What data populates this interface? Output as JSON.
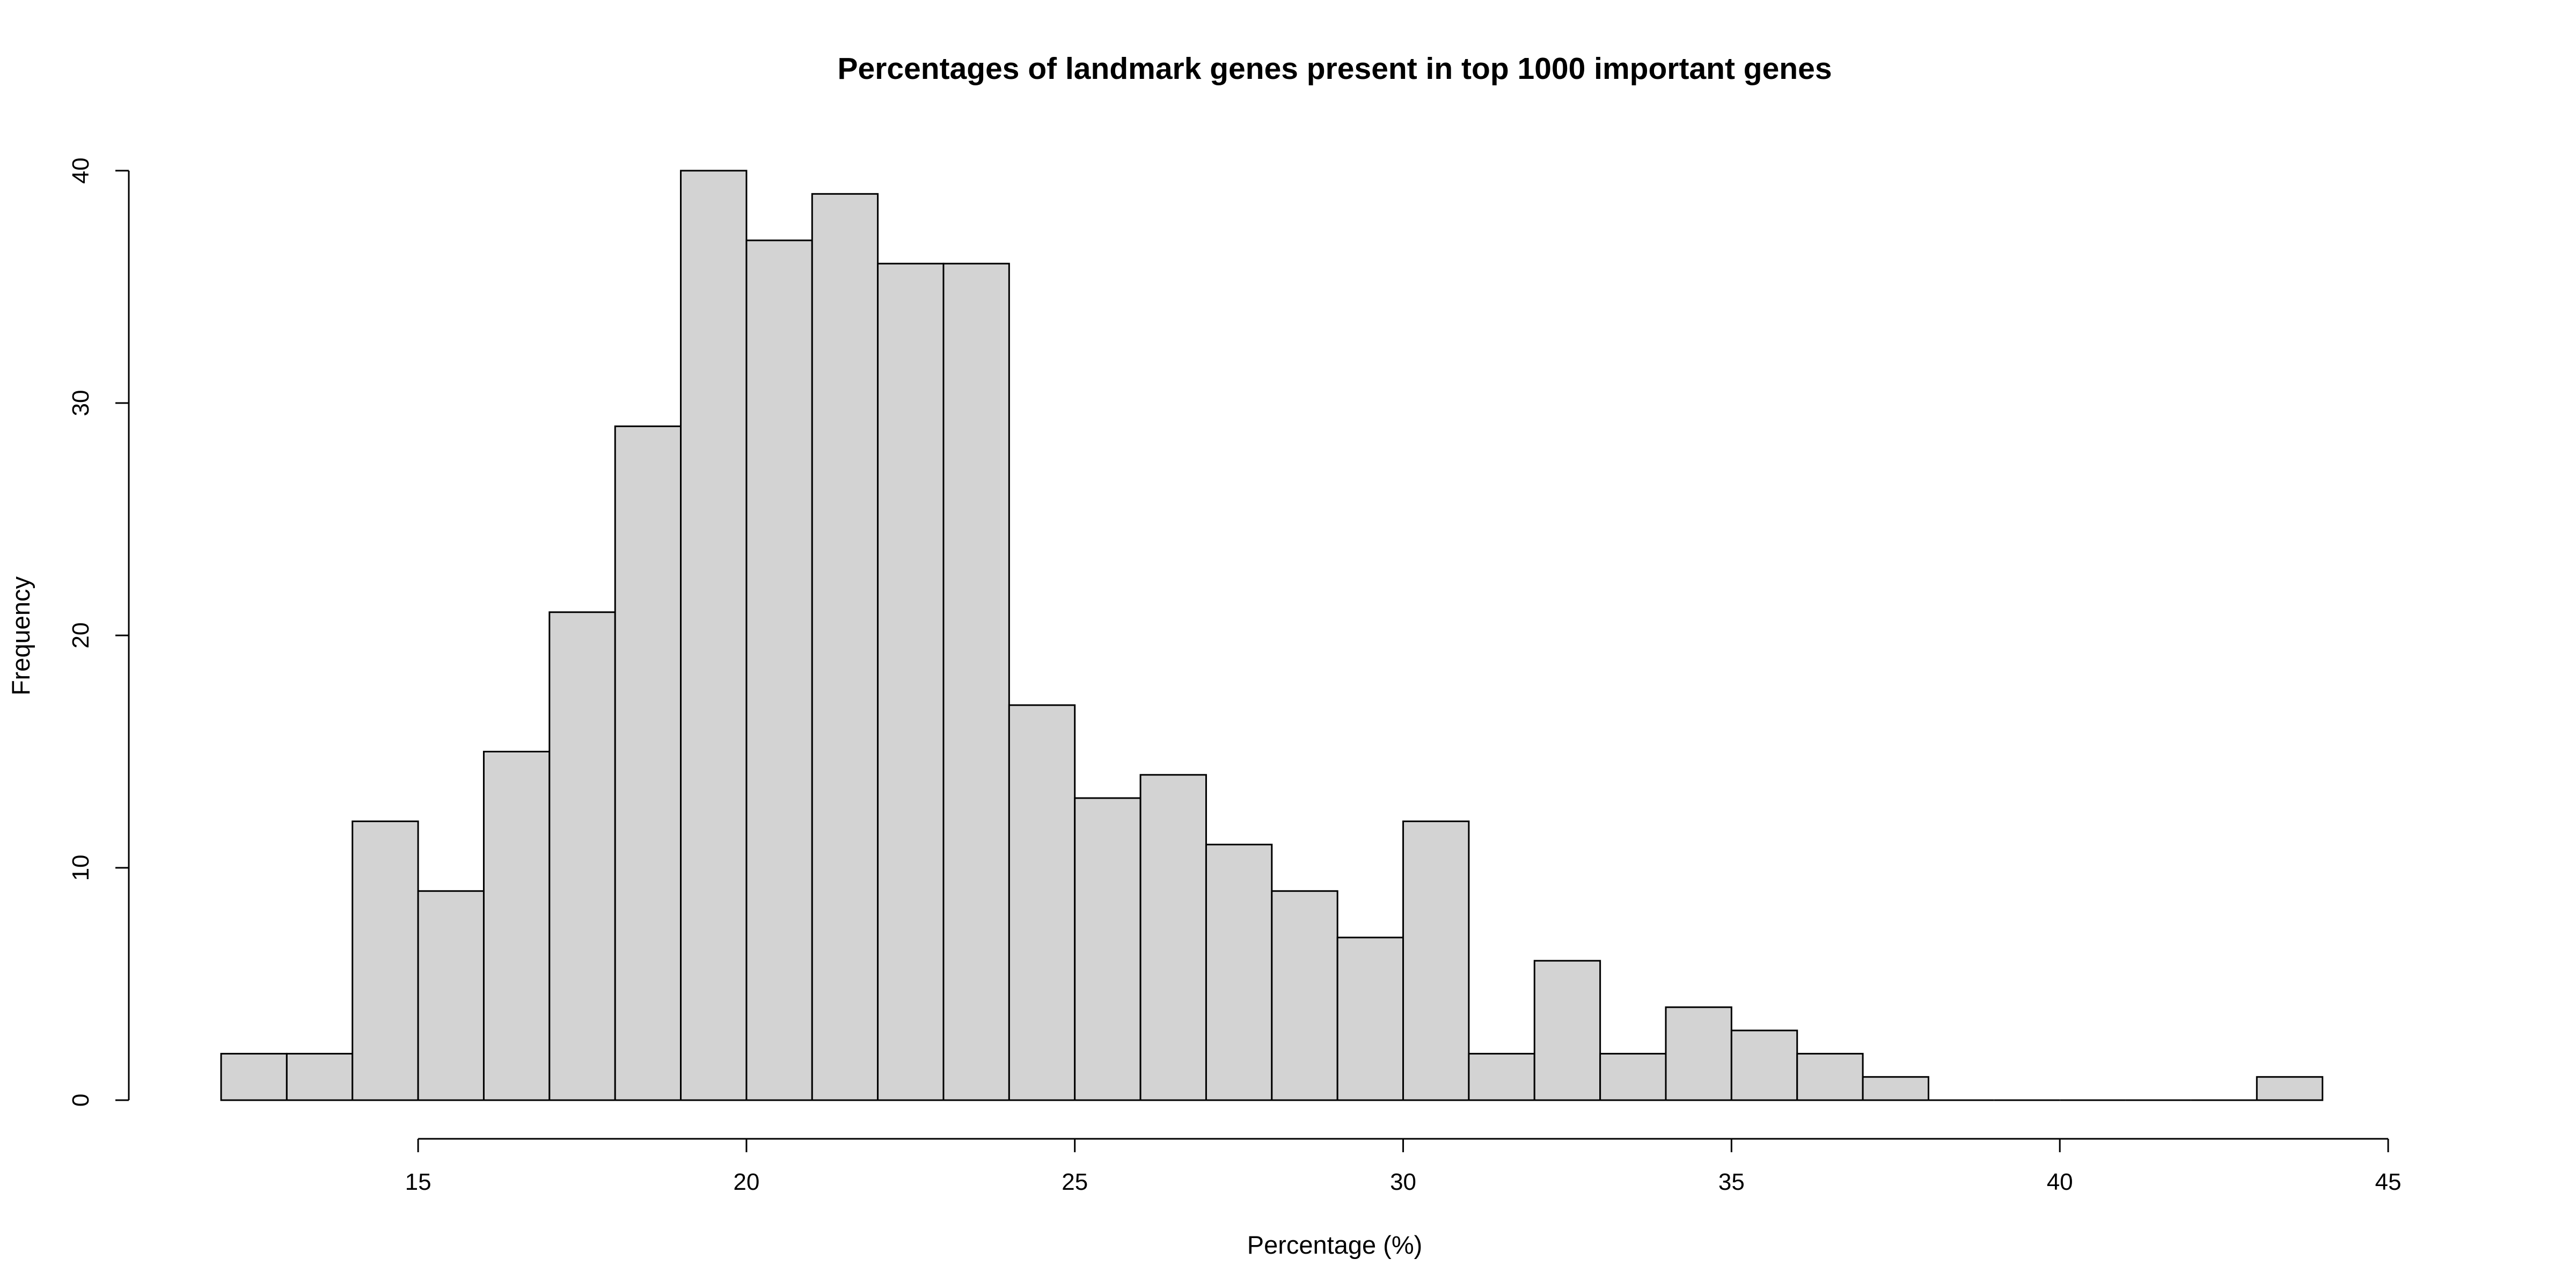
{
  "colors": {
    "bar_fill": "#d3d3d3",
    "bar_stroke": "#000000",
    "background": "#ffffff"
  },
  "chart_data": {
    "type": "bar",
    "title": "Percentages of landmark genes present in top 1000 important genes",
    "xlabel": "Percentage (%)",
    "ylabel": "Frequency",
    "xlim": [
      12,
      45
    ],
    "ylim": [
      0,
      40
    ],
    "xticks": [
      15,
      20,
      25,
      30,
      35,
      40,
      45
    ],
    "yticks": [
      0,
      10,
      20,
      30,
      40
    ],
    "grid": false,
    "bins": [
      {
        "from": 12,
        "to": 13,
        "count": 2
      },
      {
        "from": 13,
        "to": 14,
        "count": 2
      },
      {
        "from": 14,
        "to": 15,
        "count": 12
      },
      {
        "from": 15,
        "to": 16,
        "count": 9
      },
      {
        "from": 16,
        "to": 17,
        "count": 15
      },
      {
        "from": 17,
        "to": 18,
        "count": 21
      },
      {
        "from": 18,
        "to": 19,
        "count": 29
      },
      {
        "from": 19,
        "to": 20,
        "count": 40
      },
      {
        "from": 20,
        "to": 21,
        "count": 37
      },
      {
        "from": 21,
        "to": 22,
        "count": 39
      },
      {
        "from": 22,
        "to": 23,
        "count": 36
      },
      {
        "from": 23,
        "to": 24,
        "count": 36
      },
      {
        "from": 24,
        "to": 25,
        "count": 17
      },
      {
        "from": 25,
        "to": 26,
        "count": 13
      },
      {
        "from": 26,
        "to": 27,
        "count": 14
      },
      {
        "from": 27,
        "to": 28,
        "count": 11
      },
      {
        "from": 28,
        "to": 29,
        "count": 9
      },
      {
        "from": 29,
        "to": 30,
        "count": 7
      },
      {
        "from": 30,
        "to": 31,
        "count": 12
      },
      {
        "from": 31,
        "to": 32,
        "count": 2
      },
      {
        "from": 32,
        "to": 33,
        "count": 6
      },
      {
        "from": 33,
        "to": 34,
        "count": 2
      },
      {
        "from": 34,
        "to": 35,
        "count": 4
      },
      {
        "from": 35,
        "to": 36,
        "count": 3
      },
      {
        "from": 36,
        "to": 37,
        "count": 2
      },
      {
        "from": 37,
        "to": 38,
        "count": 1
      },
      {
        "from": 38,
        "to": 39,
        "count": 0
      },
      {
        "from": 39,
        "to": 40,
        "count": 0
      },
      {
        "from": 40,
        "to": 41,
        "count": 0
      },
      {
        "from": 41,
        "to": 42,
        "count": 0
      },
      {
        "from": 42,
        "to": 43,
        "count": 0
      },
      {
        "from": 43,
        "to": 44,
        "count": 1
      }
    ]
  }
}
